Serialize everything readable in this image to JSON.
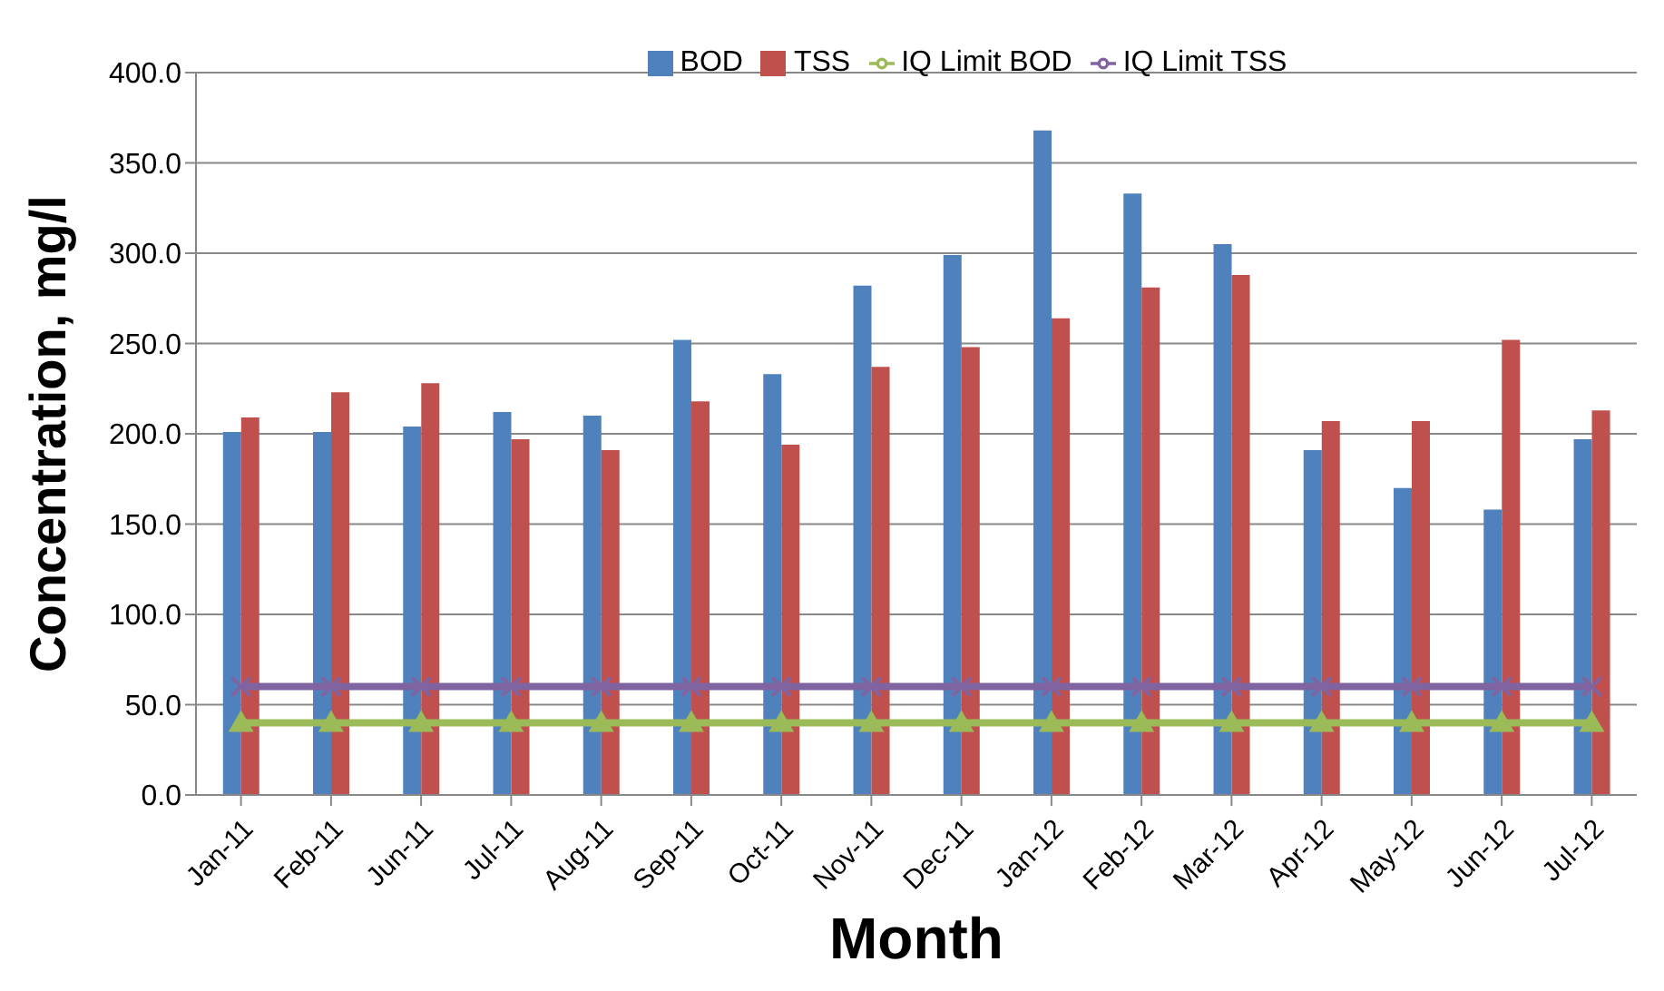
{
  "chart_data": {
    "type": "bar",
    "xlabel": "Month",
    "ylabel": "Concentration, mg/l",
    "categories": [
      "Jan-11",
      "Feb-11",
      "Jun-11",
      "Jul-11",
      "Aug-11",
      "Sep-11",
      "Oct-11",
      "Nov-11",
      "Dec-11",
      "Jan-12",
      "Feb-12",
      "Mar-12",
      "Apr-12",
      "May-12",
      "Jun-12",
      "Jul-12"
    ],
    "series": [
      {
        "name": "BOD",
        "color": "#4f81bd",
        "values": [
          201,
          201,
          204,
          212,
          210,
          252,
          233,
          282,
          299,
          368,
          333,
          305,
          191,
          170,
          158,
          197
        ]
      },
      {
        "name": "TSS",
        "color": "#c0504d",
        "values": [
          209,
          223,
          228,
          197,
          191,
          218,
          194,
          237,
          248,
          264,
          281,
          288,
          207,
          207,
          252,
          213
        ]
      },
      {
        "name": "IQ Limit BOD",
        "type": "line",
        "marker": "triangle",
        "color": "#9bbb59",
        "values": [
          40,
          40,
          40,
          40,
          40,
          40,
          40,
          40,
          40,
          40,
          40,
          40,
          40,
          40,
          40,
          40
        ]
      },
      {
        "name": "IQ Limit TSS",
        "type": "line",
        "marker": "cross",
        "color": "#8064a2",
        "values": [
          60,
          60,
          60,
          60,
          60,
          60,
          60,
          60,
          60,
          60,
          60,
          60,
          60,
          60,
          60,
          60
        ]
      }
    ],
    "ylim": [
      0,
      400
    ],
    "yticks": [
      {
        "value": 0,
        "label": "0.0"
      },
      {
        "value": 50,
        "label": "50.0"
      },
      {
        "value": 100,
        "label": "100.0"
      },
      {
        "value": 150,
        "label": "150.0"
      },
      {
        "value": 200,
        "label": "200.0"
      },
      {
        "value": 250,
        "label": "250.0"
      },
      {
        "value": 300,
        "label": "300.0"
      },
      {
        "value": 350,
        "label": "350.0"
      },
      {
        "value": 400,
        "label": "400.0"
      }
    ],
    "grid": "y",
    "legend": "top"
  }
}
